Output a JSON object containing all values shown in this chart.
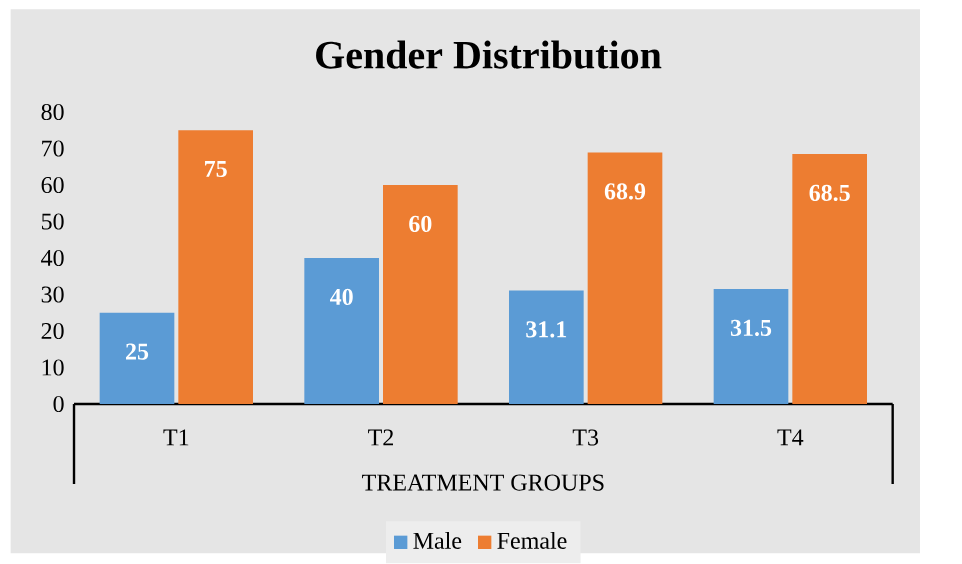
{
  "chart_data": {
    "type": "bar",
    "title": "Gender Distribution",
    "xlabel": "TREATMENT GROUPS",
    "categories": [
      "T1",
      "T2",
      "T3",
      "T4"
    ],
    "series": [
      {
        "name": "Male",
        "color": "#5b9bd5",
        "values": [
          25,
          40,
          31.1,
          31.5
        ]
      },
      {
        "name": "Female",
        "color": "#ed7d31",
        "values": [
          75,
          60,
          68.9,
          68.5
        ]
      }
    ],
    "ylim": [
      0,
      80
    ],
    "yticks": [
      0,
      10,
      20,
      30,
      40,
      50,
      60,
      70,
      80
    ],
    "grid": false,
    "legend": "bottom",
    "data_labels": true
  }
}
